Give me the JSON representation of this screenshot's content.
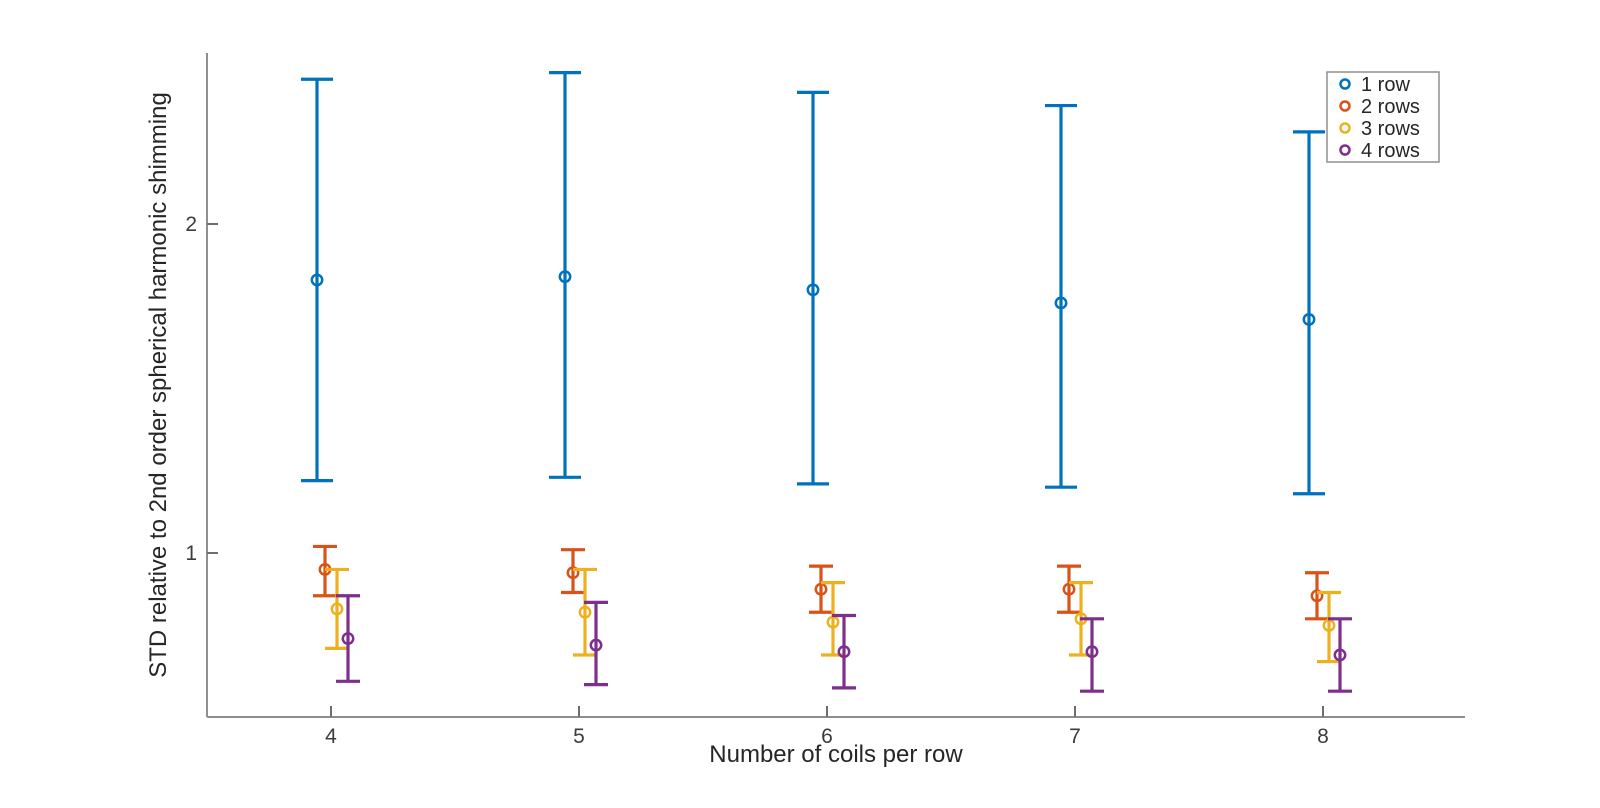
{
  "chart_data": {
    "type": "errorbar-scatter",
    "title": "",
    "xlabel": "Number of coils per row",
    "ylabel": "STD relative to 2nd order spherical harmonic shimming",
    "x": [
      4,
      5,
      6,
      7,
      8
    ],
    "x_tick_labels": [
      "4",
      "5",
      "6",
      "7",
      "8"
    ],
    "y_ticks": [
      1,
      2
    ],
    "y_tick_labels": [
      "1",
      "2"
    ],
    "xlim": [
      3.5,
      8.57
    ],
    "ylim": [
      0.5,
      2.52
    ],
    "grid": false,
    "legend_position": "top-right-inside",
    "axis_color": "#8f8f8f",
    "series": [
      {
        "name": "1 row",
        "color": "#0072BD",
        "centers": [
          1.83,
          1.84,
          1.8,
          1.76,
          1.71
        ],
        "lower": [
          1.22,
          1.23,
          1.21,
          1.2,
          1.18
        ],
        "upper": [
          2.44,
          2.46,
          2.4,
          2.36,
          2.28
        ]
      },
      {
        "name": "2 rows",
        "color": "#D95319",
        "centers": [
          0.95,
          0.94,
          0.89,
          0.89,
          0.87
        ],
        "lower": [
          0.87,
          0.88,
          0.82,
          0.82,
          0.8
        ],
        "upper": [
          1.02,
          1.01,
          0.96,
          0.96,
          0.94
        ]
      },
      {
        "name": "3 rows",
        "color": "#EDB120",
        "centers": [
          0.83,
          0.82,
          0.79,
          0.8,
          0.78
        ],
        "lower": [
          0.71,
          0.69,
          0.69,
          0.69,
          0.67
        ],
        "upper": [
          0.95,
          0.95,
          0.91,
          0.91,
          0.88
        ]
      },
      {
        "name": "4 rows",
        "color": "#7E2F8E",
        "centers": [
          0.74,
          0.72,
          0.7,
          0.7,
          0.69
        ],
        "lower": [
          0.61,
          0.6,
          0.59,
          0.58,
          0.58
        ],
        "upper": [
          0.87,
          0.85,
          0.81,
          0.8,
          0.8
        ]
      }
    ]
  }
}
